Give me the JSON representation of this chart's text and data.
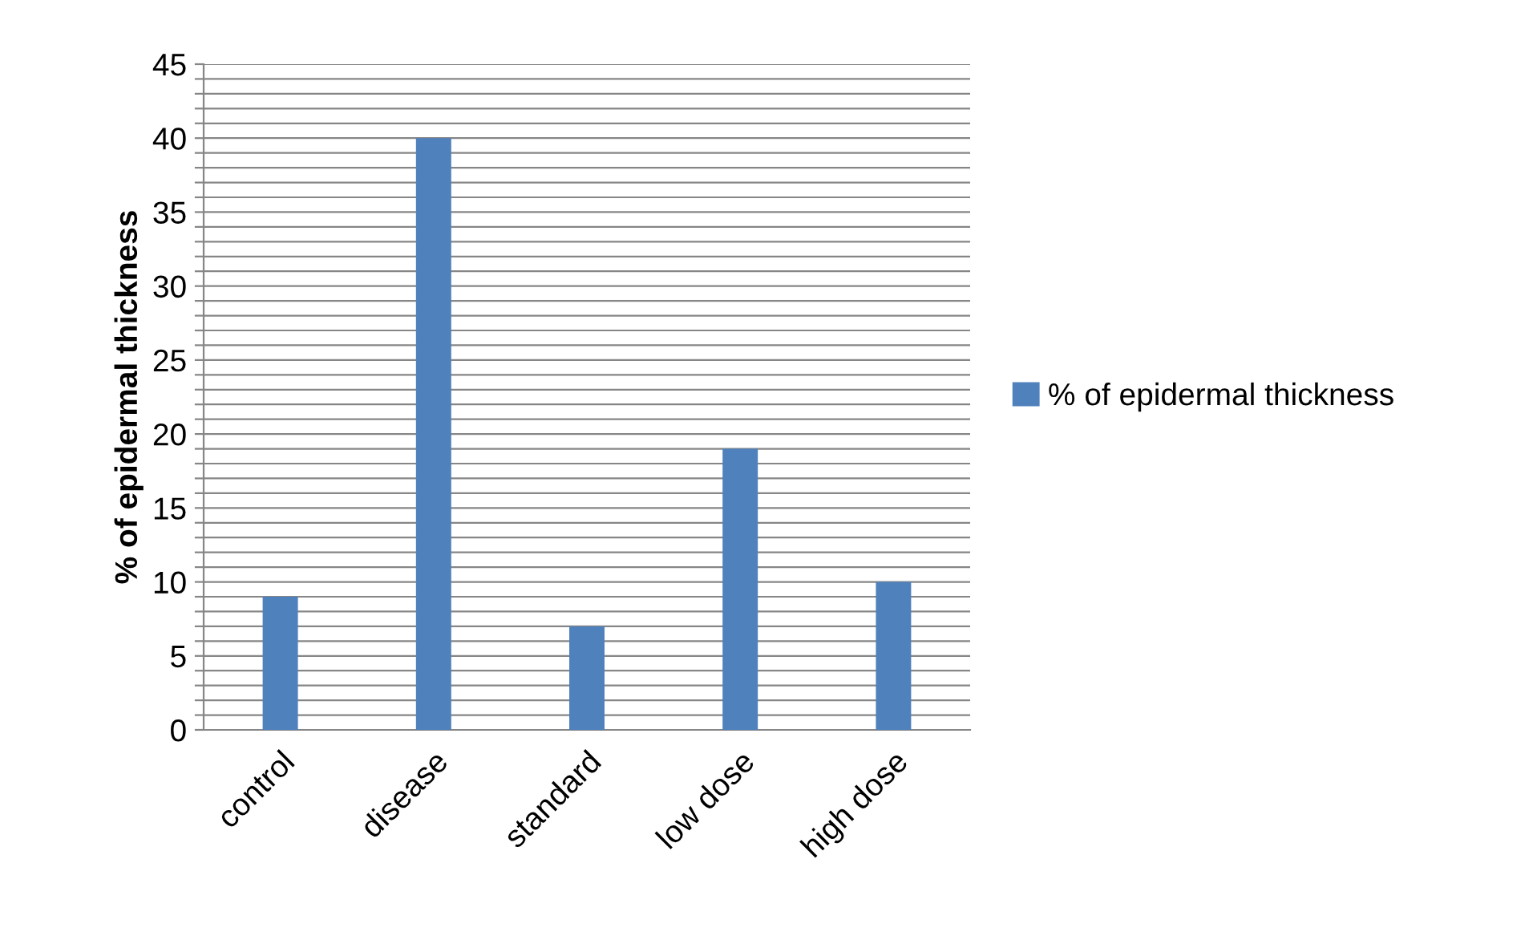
{
  "chart_data": {
    "type": "bar",
    "ylabel": "% of epidermal thickness",
    "categories": [
      "control",
      "disease",
      "standard",
      "low dose",
      "high dose"
    ],
    "series": [
      {
        "name": "% of epidermal thickness",
        "color": "#4f81bd",
        "values": [
          9,
          40,
          7,
          19,
          10
        ]
      }
    ],
    "ylim": [
      0,
      45
    ],
    "yticks": [
      0,
      {
        "value": 1,
        "label": null
      },
      {
        "value": 2,
        "label": null
      },
      {
        "value": 3,
        "label": null
      },
      {
        "value": 4,
        "label": null
      },
      5,
      {
        "value": 6,
        "label": null
      },
      {
        "value": 7,
        "label": null
      },
      {
        "value": 8,
        "label": null
      },
      {
        "value": 9,
        "label": null
      },
      10,
      {
        "value": 11,
        "label": null
      },
      {
        "value": 12,
        "label": null
      },
      {
        "value": 13,
        "label": null
      },
      {
        "value": 14,
        "label": null
      },
      15,
      {
        "value": 16,
        "label": null
      },
      {
        "value": 17,
        "label": null
      },
      {
        "value": 18,
        "label": null
      },
      {
        "value": 19,
        "label": null
      },
      20,
      {
        "value": 21,
        "label": null
      },
      {
        "value": 22,
        "label": null
      },
      {
        "value": 23,
        "label": null
      },
      {
        "value": 24,
        "label": null
      },
      25,
      {
        "value": 26,
        "label": null
      },
      {
        "value": 27,
        "label": null
      },
      {
        "value": 28,
        "label": null
      },
      {
        "value": 29,
        "label": null
      },
      30,
      {
        "value": 31,
        "label": null
      },
      {
        "value": 32,
        "label": null
      },
      {
        "value": 33,
        "label": null
      },
      {
        "value": 34,
        "label": null
      },
      35,
      {
        "value": 36,
        "label": null
      },
      {
        "value": 37,
        "label": null
      },
      {
        "value": 38,
        "label": null
      },
      {
        "value": 39,
        "label": null
      },
      40,
      {
        "value": 41,
        "label": null
      },
      {
        "value": 42,
        "label": null
      },
      {
        "value": 43,
        "label": null
      },
      {
        "value": 44,
        "label": null
      },
      45
    ],
    "grid": "y",
    "legend": "right"
  }
}
